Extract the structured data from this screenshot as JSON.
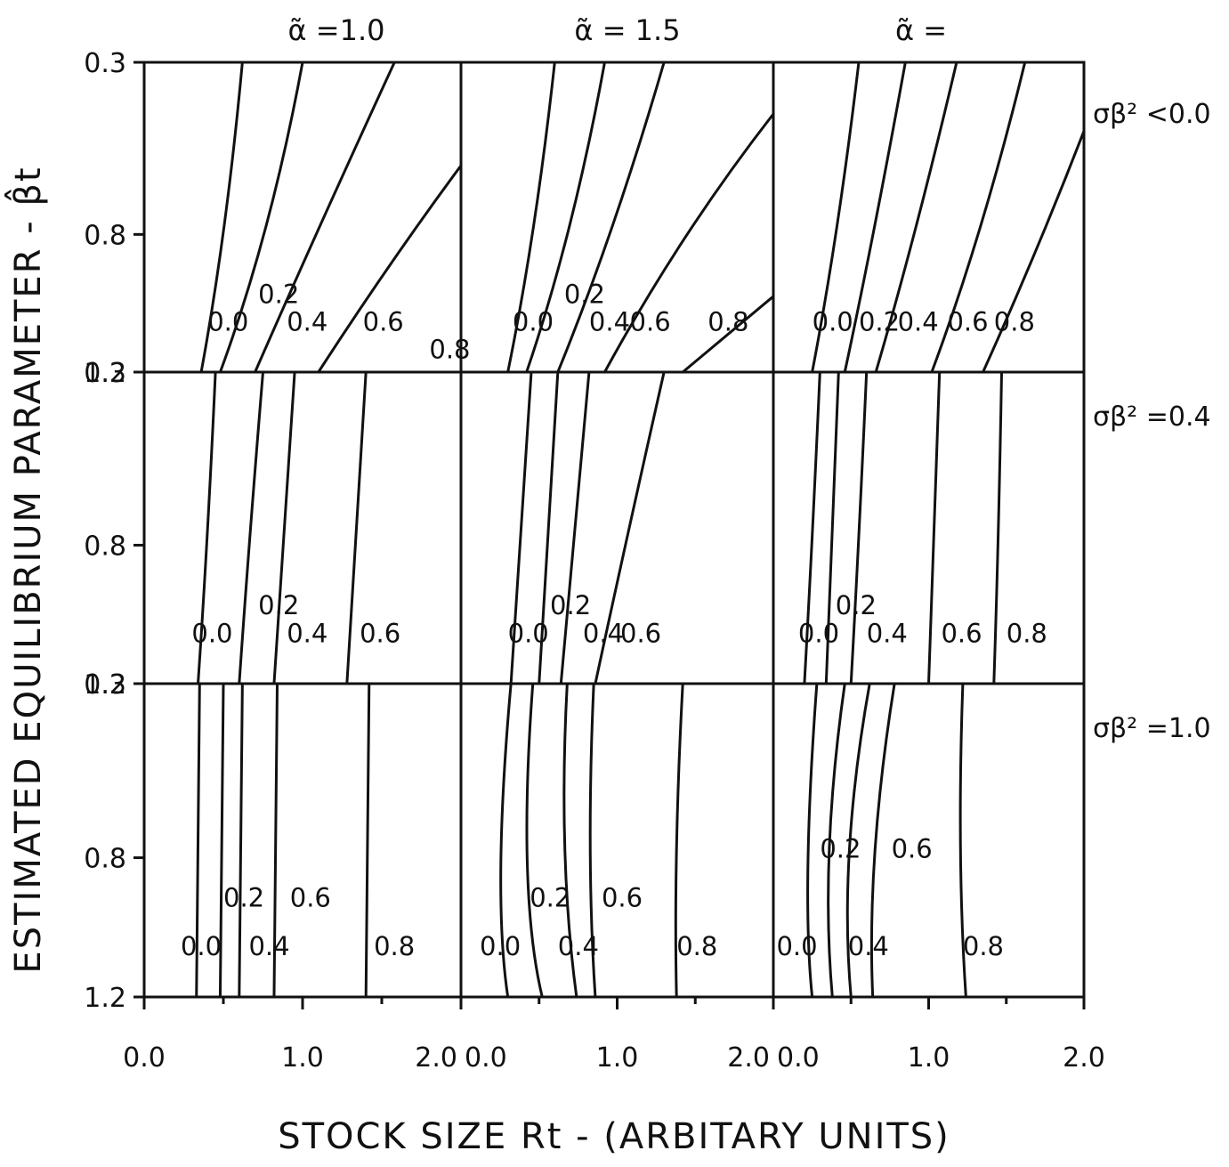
{
  "chart_data": {
    "type": "contour",
    "xlabel": "STOCK SIZE Rt - (ARBITARY UNITS)",
    "ylabel": "ESTIMATED EQUILIBRIUM PARAMETER - β̂t",
    "column_titles": [
      "α̃ =1.0",
      "α̃ = 1.5",
      "α̃ ="
    ],
    "row_titles": [
      "σβ² <0.0",
      "σβ² =0.4",
      "σβ² =1.0"
    ],
    "x_ticks": [
      "0.0",
      "1.0",
      "2.0"
    ],
    "y_ticks": [
      "0.3",
      "0.8",
      "1.2"
    ],
    "xlim": [
      0,
      2
    ],
    "ylim": [
      0.3,
      1.2
    ],
    "y_inverted": true,
    "grid": false,
    "panels": [
      {
        "row": 0,
        "col": 0,
        "contours": [
          {
            "level": "0.0",
            "label_pos": [
              0.4,
              1.08
            ],
            "points": [
              [
                0.36,
                1.2
              ],
              [
                0.52,
                0.8
              ],
              [
                0.62,
                0.3
              ]
            ]
          },
          {
            "level": "0.2",
            "label_pos": [
              0.72,
              1.0
            ],
            "points": [
              [
                0.48,
                1.2
              ],
              [
                0.8,
                0.8
              ],
              [
                1.0,
                0.3
              ]
            ]
          },
          {
            "level": "0.4",
            "label_pos": [
              0.9,
              1.08
            ],
            "points": [
              [
                0.7,
                1.2
              ],
              [
                1.08,
                0.8
              ],
              [
                1.58,
                0.3
              ]
            ]
          },
          {
            "level": "0.6",
            "label_pos": [
              1.38,
              1.08
            ],
            "points": [
              [
                1.1,
                1.2
              ],
              [
                1.55,
                0.88
              ],
              [
                2.0,
                0.6
              ]
            ]
          },
          {
            "level": "0.8",
            "label_pos": [
              1.8,
              1.16
            ],
            "points": []
          }
        ]
      },
      {
        "row": 0,
        "col": 1,
        "contours": [
          {
            "level": "0.0",
            "label_pos": [
              0.33,
              1.08
            ],
            "points": [
              [
                0.3,
                1.2
              ],
              [
                0.48,
                0.8
              ],
              [
                0.6,
                0.3
              ]
            ]
          },
          {
            "level": "0.2",
            "label_pos": [
              0.66,
              1.0
            ],
            "points": [
              [
                0.42,
                1.2
              ],
              [
                0.72,
                0.8
              ],
              [
                0.92,
                0.3
              ]
            ]
          },
          {
            "level": "0.4",
            "label_pos": [
              0.82,
              1.08
            ],
            "points": [
              [
                0.62,
                1.2
              ],
              [
                0.98,
                0.8
              ],
              [
                1.3,
                0.3
              ]
            ]
          },
          {
            "level": "0.6",
            "label_pos": [
              1.08,
              1.08
            ],
            "points": [
              [
                0.92,
                1.2
              ],
              [
                1.4,
                0.8
              ],
              [
                2.0,
                0.45
              ]
            ]
          },
          {
            "level": "0.8",
            "label_pos": [
              1.58,
              1.08
            ],
            "points": [
              [
                1.42,
                1.2
              ],
              [
                2.0,
                0.98
              ]
            ]
          }
        ]
      },
      {
        "row": 0,
        "col": 2,
        "contours": [
          {
            "level": "0.0",
            "label_pos": [
              0.25,
              1.08
            ],
            "points": [
              [
                0.25,
                1.2
              ],
              [
                0.42,
                0.8
              ],
              [
                0.55,
                0.3
              ]
            ]
          },
          {
            "level": "0.2",
            "label_pos": [
              0.55,
              1.08
            ],
            "points": [
              [
                0.46,
                1.2
              ],
              [
                0.65,
                0.8
              ],
              [
                0.85,
                0.3
              ]
            ]
          },
          {
            "level": "0.4",
            "label_pos": [
              0.8,
              1.08
            ],
            "points": [
              [
                0.66,
                1.2
              ],
              [
                0.92,
                0.8
              ],
              [
                1.18,
                0.3
              ]
            ]
          },
          {
            "level": "0.6",
            "label_pos": [
              1.12,
              1.08
            ],
            "points": [
              [
                1.02,
                1.2
              ],
              [
                1.35,
                0.8
              ],
              [
                1.62,
                0.3
              ]
            ]
          },
          {
            "level": "0.8",
            "label_pos": [
              1.42,
              1.08
            ],
            "points": [
              [
                1.35,
                1.2
              ],
              [
                1.7,
                0.85
              ],
              [
                2.0,
                0.5
              ]
            ]
          }
        ]
      },
      {
        "row": 1,
        "col": 0,
        "contours": [
          {
            "level": "0.0",
            "label_pos": [
              0.3,
              1.08
            ],
            "points": [
              [
                0.34,
                1.2
              ],
              [
                0.4,
                0.8
              ],
              [
                0.45,
                0.3
              ]
            ]
          },
          {
            "level": "0.2",
            "label_pos": [
              0.72,
              1.0
            ],
            "points": [
              [
                0.6,
                1.2
              ],
              [
                0.66,
                0.8
              ],
              [
                0.75,
                0.3
              ]
            ]
          },
          {
            "level": "0.4",
            "label_pos": [
              0.9,
              1.08
            ],
            "points": [
              [
                0.82,
                1.2
              ],
              [
                0.88,
                0.8
              ],
              [
                0.95,
                0.3
              ]
            ]
          },
          {
            "level": "0.6",
            "label_pos": [
              1.36,
              1.08
            ],
            "points": [
              [
                1.28,
                1.2
              ],
              [
                1.33,
                0.8
              ],
              [
                1.4,
                0.3
              ]
            ]
          }
        ]
      },
      {
        "row": 1,
        "col": 1,
        "contours": [
          {
            "level": "0.0",
            "label_pos": [
              0.3,
              1.08
            ],
            "points": [
              [
                0.32,
                1.2
              ],
              [
                0.38,
                0.8
              ],
              [
                0.45,
                0.3
              ]
            ]
          },
          {
            "level": "0.2",
            "label_pos": [
              0.57,
              1.0
            ],
            "points": [
              [
                0.5,
                1.2
              ],
              [
                0.55,
                0.8
              ],
              [
                0.62,
                0.3
              ]
            ]
          },
          {
            "level": "0.4",
            "label_pos": [
              0.78,
              1.08
            ],
            "points": [
              [
                0.64,
                1.2
              ],
              [
                0.72,
                0.8
              ],
              [
                0.82,
                0.3
              ]
            ]
          },
          {
            "level": "0.6",
            "label_pos": [
              1.02,
              1.08
            ],
            "points": [
              [
                0.86,
                1.2
              ],
              [
                1.05,
                0.8
              ],
              [
                1.3,
                0.3
              ]
            ]
          }
        ]
      },
      {
        "row": 1,
        "col": 2,
        "contours": [
          {
            "level": "0.0",
            "label_pos": [
              0.16,
              1.08
            ],
            "points": [
              [
                0.2,
                1.2
              ],
              [
                0.25,
                0.8
              ],
              [
                0.3,
                0.3
              ]
            ]
          },
          {
            "level": "0.2",
            "label_pos": [
              0.4,
              1.0
            ],
            "points": [
              [
                0.34,
                1.2
              ],
              [
                0.38,
                0.8
              ],
              [
                0.42,
                0.3
              ]
            ]
          },
          {
            "level": "0.4",
            "label_pos": [
              0.6,
              1.08
            ],
            "points": [
              [
                0.5,
                1.2
              ],
              [
                0.55,
                0.8
              ],
              [
                0.6,
                0.3
              ]
            ]
          },
          {
            "level": "0.6",
            "label_pos": [
              1.08,
              1.08
            ],
            "points": [
              [
                1.0,
                1.2
              ],
              [
                1.03,
                0.8
              ],
              [
                1.07,
                0.3
              ]
            ]
          },
          {
            "level": "0.8",
            "label_pos": [
              1.5,
              1.08
            ],
            "points": [
              [
                1.42,
                1.2
              ],
              [
                1.45,
                0.8
              ],
              [
                1.47,
                0.3
              ]
            ]
          }
        ]
      },
      {
        "row": 2,
        "col": 0,
        "contours": [
          {
            "level": "0.0",
            "label_pos": [
              0.23,
              1.08
            ],
            "points": [
              [
                0.33,
                1.2
              ],
              [
                0.35,
                0.3
              ]
            ]
          },
          {
            "level": "0.2",
            "label_pos": [
              0.5,
              0.94
            ],
            "points": [
              [
                0.48,
                1.2
              ],
              [
                0.5,
                0.3
              ]
            ]
          },
          {
            "level": "0.4",
            "label_pos": [
              0.66,
              1.08
            ],
            "points": [
              [
                0.6,
                1.2
              ],
              [
                0.62,
                0.3
              ]
            ]
          },
          {
            "level": "0.6",
            "label_pos": [
              0.92,
              0.94
            ],
            "points": [
              [
                0.82,
                1.2
              ],
              [
                0.84,
                0.3
              ]
            ]
          },
          {
            "level": "0.8",
            "label_pos": [
              1.45,
              1.08
            ],
            "points": [
              [
                1.4,
                1.2
              ],
              [
                1.42,
                0.3
              ]
            ]
          }
        ]
      },
      {
        "row": 2,
        "col": 1,
        "contours": [
          {
            "level": "0.0",
            "label_pos": [
              0.12,
              1.08
            ],
            "points": [
              [
                0.3,
                1.2
              ],
              [
                0.2,
                0.9
              ],
              [
                0.32,
                0.3
              ]
            ]
          },
          {
            "level": "0.2",
            "label_pos": [
              0.44,
              0.94
            ],
            "points": [
              [
                0.52,
                1.2
              ],
              [
                0.36,
                0.9
              ],
              [
                0.46,
                0.3
              ]
            ]
          },
          {
            "level": "0.4",
            "label_pos": [
              0.62,
              1.08
            ],
            "points": [
              [
                0.74,
                1.2
              ],
              [
                0.62,
                0.8
              ],
              [
                0.68,
                0.3
              ]
            ]
          },
          {
            "level": "0.6",
            "label_pos": [
              0.9,
              0.94
            ],
            "points": [
              [
                0.86,
                1.2
              ],
              [
                0.8,
                0.8
              ],
              [
                0.85,
                0.3
              ]
            ]
          },
          {
            "level": "0.8",
            "label_pos": [
              1.38,
              1.08
            ],
            "points": [
              [
                1.38,
                1.2
              ],
              [
                1.36,
                0.8
              ],
              [
                1.42,
                0.3
              ]
            ]
          }
        ]
      },
      {
        "row": 2,
        "col": 2,
        "contours": [
          {
            "level": "0.0",
            "label_pos": [
              0.02,
              1.08
            ],
            "points": [
              [
                0.25,
                1.2
              ],
              [
                0.18,
                0.9
              ],
              [
                0.28,
                0.3
              ]
            ]
          },
          {
            "level": "0.2",
            "label_pos": [
              0.3,
              0.8
            ],
            "points": [
              [
                0.38,
                1.2
              ],
              [
                0.3,
                0.8
              ],
              [
                0.46,
                0.3
              ]
            ]
          },
          {
            "level": "0.4",
            "label_pos": [
              0.48,
              1.08
            ],
            "points": [
              [
                0.5,
                1.2
              ],
              [
                0.42,
                0.8
              ],
              [
                0.62,
                0.3
              ]
            ]
          },
          {
            "level": "0.6",
            "label_pos": [
              0.76,
              0.8
            ],
            "points": [
              [
                0.64,
                1.2
              ],
              [
                0.6,
                0.8
              ],
              [
                0.78,
                0.3
              ]
            ]
          },
          {
            "level": "0.8",
            "label_pos": [
              1.22,
              1.08
            ],
            "points": [
              [
                1.24,
                1.2
              ],
              [
                1.18,
                0.8
              ],
              [
                1.22,
                0.3
              ]
            ]
          }
        ]
      }
    ]
  }
}
